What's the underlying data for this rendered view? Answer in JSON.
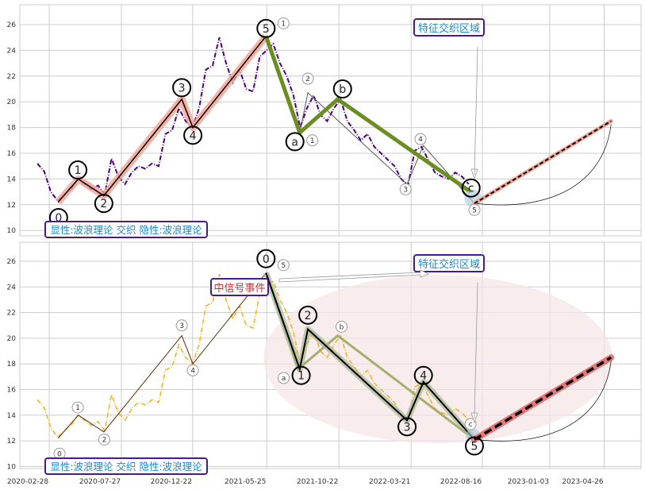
{
  "chart_data": [
    {
      "type": "line",
      "panel": "top",
      "price_color": "#4b0082",
      "legend_box": "显性:波浪理论 交织 隐性:波浪理论",
      "zone_label": "特征交织区域",
      "ylim": [
        9.6,
        27.3
      ],
      "yticks": [
        10,
        12,
        14,
        16,
        18,
        20,
        22,
        24,
        26
      ]
    },
    {
      "type": "line",
      "panel": "bottom",
      "price_color": "#f0b428",
      "legend_box": "显性:波浪理论 交织 隐性:波浪理论",
      "zone_label": "特征交织区域",
      "event_label": "中信号事件",
      "ylim": [
        9.6,
        27.3
      ],
      "yticks": [
        10,
        12,
        14,
        16,
        18,
        20,
        22,
        24,
        26
      ],
      "xticks": [
        "2020-02-28",
        "2020-07-27",
        "2020-12-22",
        "2021-05-25",
        "2021-10-22",
        "2022-03-21",
        "2022-08-16",
        "2023-01-03",
        "2023-04-26"
      ]
    }
  ],
  "series": {
    "start": "2020-03-19",
    "step_days": 14,
    "values": [
      15.2,
      14.6,
      13.0,
      12.3,
      12.8,
      13.2,
      14.0,
      13.6,
      13.2,
      13.5,
      12.8,
      15.6,
      14.2,
      13.6,
      14.5,
      15.0,
      14.8,
      15.2,
      15.0,
      17.5,
      17.8,
      19.5,
      18.5,
      18.0,
      19.5,
      22.5,
      22.8,
      25.0,
      23.0,
      21.5,
      22.5,
      21.0,
      20.8,
      23.5,
      24.0,
      24.5,
      23.0,
      22.0,
      20.5,
      18.0,
      19.5,
      20.5,
      19.0,
      18.5,
      19.5,
      20.2,
      18.5,
      17.8,
      17.0,
      17.5,
      16.5,
      16.0,
      15.5,
      15.0,
      14.0,
      13.5,
      16.2,
      16.5,
      15.5,
      14.5,
      14.2,
      14.0,
      14.5,
      14.2,
      13.6
    ]
  },
  "impulse_up": [
    [
      "2020-05-01",
      12.2
    ],
    [
      "2020-06-12",
      14.0
    ],
    [
      "2020-08-04",
      12.7
    ],
    [
      "2021-01-13",
      20.2
    ],
    [
      "2021-02-05",
      18.0
    ],
    [
      "2021-07-07",
      25.1
    ]
  ],
  "abc_top": [
    [
      "2021-07-07",
      25.1
    ],
    [
      "2021-09-15",
      17.6
    ],
    [
      "2021-12-03",
      20.2
    ],
    [
      "2022-09-05",
      13.0
    ]
  ],
  "sub_down": [
    [
      "2021-07-07",
      25.1
    ],
    [
      "2021-09-15",
      17.6
    ],
    [
      "2021-10-02",
      20.7
    ],
    [
      "2022-04-26",
      13.6
    ],
    [
      "2022-05-30",
      16.6
    ],
    [
      "2022-09-13",
      12.1
    ]
  ],
  "abc_bottom": [
    [
      "2021-07-07",
      25.1
    ],
    [
      "2021-09-12",
      17.6
    ],
    [
      "2021-12-03",
      20.2
    ],
    [
      "2022-09-13",
      12.1
    ]
  ],
  "projection": [
    [
      "2022-09-13",
      12.1
    ],
    [
      "2023-06-24",
      18.5
    ]
  ],
  "labels_top_big": [
    [
      "0",
      "2020-05-02",
      11.0
    ],
    [
      "1",
      "2020-06-11",
      14.7
    ],
    [
      "2",
      "2020-08-04",
      12.1
    ],
    [
      "3",
      "2021-01-13",
      21.1
    ],
    [
      "4",
      "2021-02-05",
      17.4
    ],
    [
      "5",
      "2021-07-07",
      25.7
    ],
    [
      "a",
      "2021-09-05",
      16.9
    ],
    [
      "b",
      "2021-12-13",
      21.0
    ],
    [
      "c",
      "2022-09-06",
      13.3
    ]
  ],
  "labels_top_small": [
    [
      "1",
      "2021-07-07",
      26.1
    ],
    [
      "1",
      "2021-09-15",
      17.0
    ],
    [
      "2",
      "2021-10-02",
      21.8
    ],
    [
      "3",
      "2022-04-23",
      13.2
    ],
    [
      "4",
      "2022-05-24",
      17.1
    ],
    [
      "5",
      "2022-09-13",
      11.6
    ]
  ],
  "labels_bottom_small": [
    [
      "0",
      "2020-05-04",
      11.0
    ],
    [
      "1",
      "2020-06-11",
      14.6
    ],
    [
      "2",
      "2020-08-05",
      12.1
    ],
    [
      "3",
      "2021-01-13",
      21.0
    ],
    [
      "4",
      "2021-02-05",
      17.5
    ],
    [
      "5",
      "2021-07-07",
      25.7
    ],
    [
      "a",
      "2021-09-10",
      16.9
    ],
    [
      "b",
      "2021-12-11",
      20.9
    ],
    [
      "c",
      "2022-09-05",
      13.3
    ]
  ],
  "labels_bottom_big": [
    [
      "0",
      "2021-07-07",
      26.2
    ],
    [
      "1",
      "2021-09-18",
      17.1
    ],
    [
      "2",
      "2021-10-02",
      21.8
    ],
    [
      "3",
      "2022-04-26",
      13.1
    ],
    [
      "4",
      "2022-05-30",
      17.1
    ],
    [
      "5",
      "2022-09-13",
      11.6
    ]
  ]
}
